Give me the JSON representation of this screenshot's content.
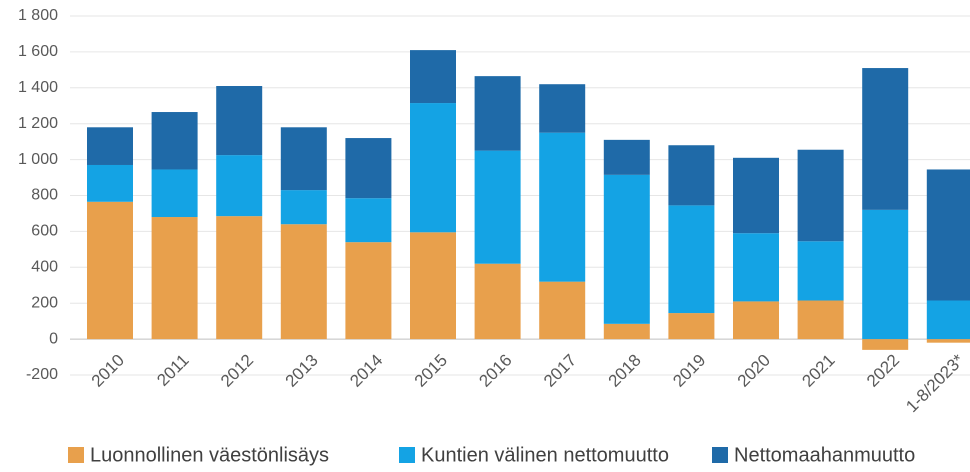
{
  "chart_data": {
    "type": "stacked_bar",
    "categories": [
      "2010",
      "2011",
      "2012",
      "2013",
      "2014",
      "2015",
      "2016",
      "2017",
      "2018",
      "2019",
      "2020",
      "2021",
      "2022",
      "1-8/2023*"
    ],
    "series": [
      {
        "name": "Luonnollinen väestönlisäys",
        "color": "#e8a04c",
        "values": [
          765,
          680,
          685,
          640,
          540,
          595,
          420,
          320,
          85,
          145,
          210,
          215,
          -60,
          -20
        ]
      },
      {
        "name": "Kuntien välinen nettomuutto",
        "color": "#14a3e4",
        "values": [
          205,
          265,
          340,
          190,
          245,
          720,
          630,
          830,
          830,
          600,
          380,
          330,
          720,
          215
        ]
      },
      {
        "name": "Nettomaahanmuutto",
        "color": "#1f6aa8",
        "values": [
          210,
          320,
          385,
          350,
          335,
          295,
          415,
          270,
          195,
          335,
          420,
          510,
          790,
          730
        ]
      }
    ],
    "ylim": [
      -200,
      1800
    ],
    "yticks": [
      -200,
      0,
      200,
      400,
      600,
      800,
      {
        "value": 1000,
        "label": "1 000"
      },
      {
        "value": 1200,
        "label": "1 200"
      },
      {
        "value": 1400,
        "label": "1 400"
      },
      {
        "value": 1600,
        "label": "1 600"
      },
      {
        "value": 1800,
        "label": "1 800"
      }
    ],
    "grid": true,
    "legend": "bottom"
  }
}
